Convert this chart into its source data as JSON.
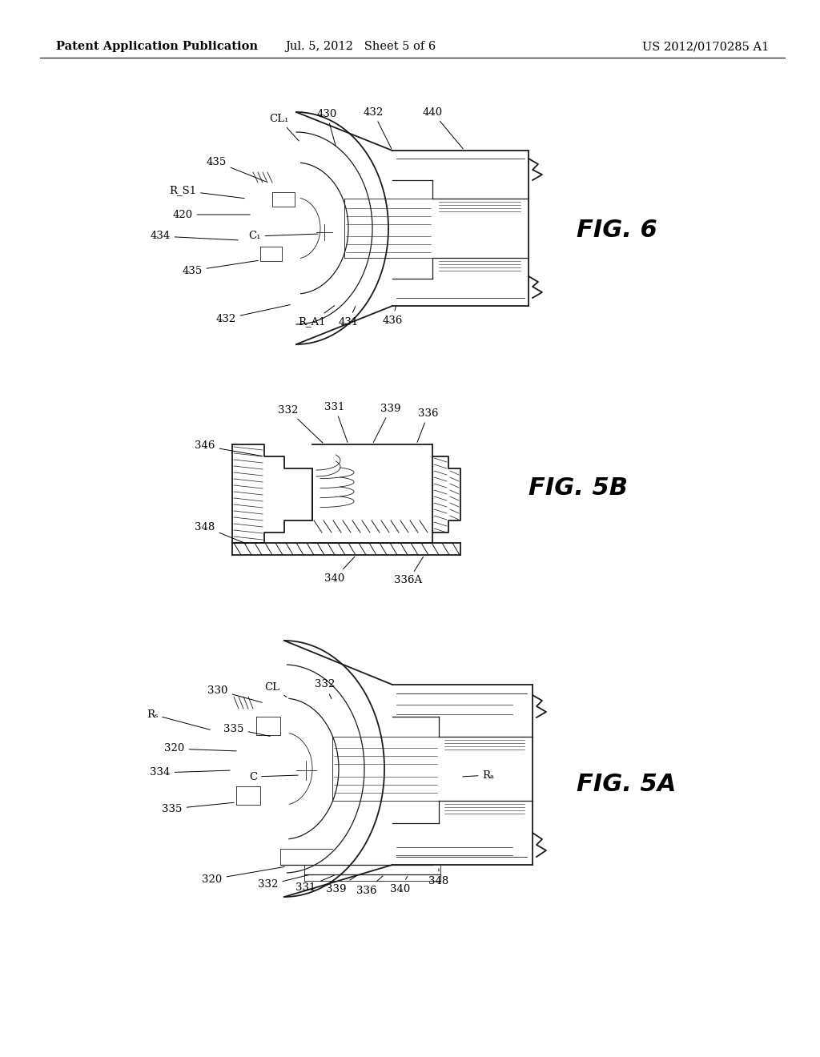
{
  "background_color": "#ffffff",
  "page_width": 10.24,
  "page_height": 13.2,
  "header_left": "Patent Application Publication",
  "header_center": "Jul. 5, 2012   Sheet 5 of 6",
  "header_right": "US 2012/0170285 A1",
  "header_fontsize": 10.5
}
